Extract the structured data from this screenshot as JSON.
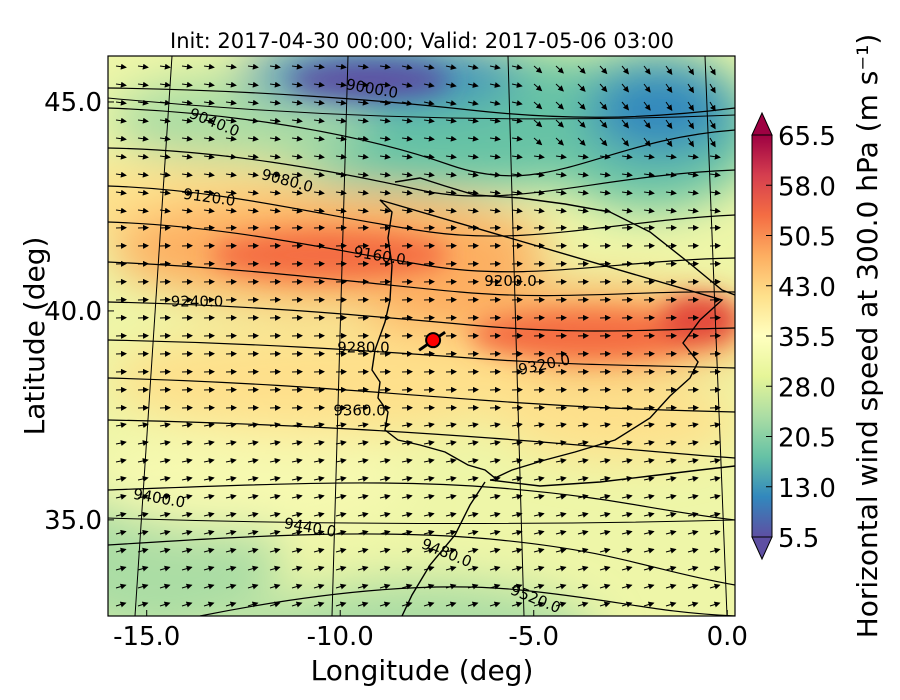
{
  "title": "Init: 2017-04-30 00:00; Valid: 2017-05-06 03:00",
  "x_axis": {
    "label": "Longitude (deg)",
    "range": [
      -16.0,
      0.2
    ],
    "ticks": [
      {
        "value": -15.0,
        "label": "-15.0"
      },
      {
        "value": -10.0,
        "label": "-10.0"
      },
      {
        "value": -5.0,
        "label": "-5.0"
      },
      {
        "value": 0.0,
        "label": "0.0"
      }
    ]
  },
  "y_axis": {
    "label": "Latitude (deg)",
    "range": [
      32.7,
      46.1
    ],
    "ticks": [
      {
        "value": 45.0,
        "label": "45.0"
      },
      {
        "value": 40.0,
        "label": "40.0"
      },
      {
        "value": 35.0,
        "label": "35.0"
      }
    ]
  },
  "colorbar": {
    "label": "Horizontal wind speed at 300.0 hPa (m s⁻¹)",
    "range": [
      5.5,
      65.5
    ],
    "colors_low_to_high": [
      "#5e4fa2",
      "#3288bd",
      "#66c2a5",
      "#abdda4",
      "#e6f598",
      "#ffffbf",
      "#fee08b",
      "#fdae61",
      "#f46d43",
      "#d53e4f",
      "#9e0142"
    ],
    "ticks": [
      {
        "value": 65.5,
        "label": "65.5"
      },
      {
        "value": 58.0,
        "label": "58.0"
      },
      {
        "value": 50.5,
        "label": "50.5"
      },
      {
        "value": 43.0,
        "label": "43.0"
      },
      {
        "value": 35.5,
        "label": "35.5"
      },
      {
        "value": 28.0,
        "label": "28.0"
      },
      {
        "value": 20.5,
        "label": "20.5"
      },
      {
        "value": 13.0,
        "label": "13.0"
      },
      {
        "value": 5.5,
        "label": "5.5"
      }
    ]
  },
  "contour_labels": [
    {
      "text": "9000.0",
      "lon": -9.2,
      "lat": 45.2,
      "angle": 10
    },
    {
      "text": "9040.0",
      "lon": -13.3,
      "lat": 44.4,
      "angle": 22
    },
    {
      "text": "9080.0",
      "lon": -11.4,
      "lat": 43.0,
      "angle": 15
    },
    {
      "text": "9120.0",
      "lon": -13.4,
      "lat": 42.6,
      "angle": 8
    },
    {
      "text": "9160.0",
      "lon": -9.0,
      "lat": 41.2,
      "angle": 9
    },
    {
      "text": "9200.0",
      "lon": -5.6,
      "lat": 40.6,
      "angle": 0
    },
    {
      "text": "9240.0",
      "lon": -13.7,
      "lat": 40.1,
      "angle": 0
    },
    {
      "text": "9280.0",
      "lon": -9.4,
      "lat": 39.0,
      "angle": 0
    },
    {
      "text": "9320.0",
      "lon": -4.7,
      "lat": 38.6,
      "angle": -12
    },
    {
      "text": "9360.0",
      "lon": -9.5,
      "lat": 37.5,
      "angle": 0
    },
    {
      "text": "9400.0",
      "lon": -14.7,
      "lat": 35.4,
      "angle": 10
    },
    {
      "text": "9440.0",
      "lon": -10.8,
      "lat": 34.7,
      "angle": 10
    },
    {
      "text": "9480.0",
      "lon": -7.3,
      "lat": 34.1,
      "angle": 22
    },
    {
      "text": "9520.0",
      "lon": -5.0,
      "lat": 33.0,
      "angle": 22
    }
  ],
  "marker": {
    "lon": -7.6,
    "lat": 39.3,
    "color": "#ff0000"
  }
}
